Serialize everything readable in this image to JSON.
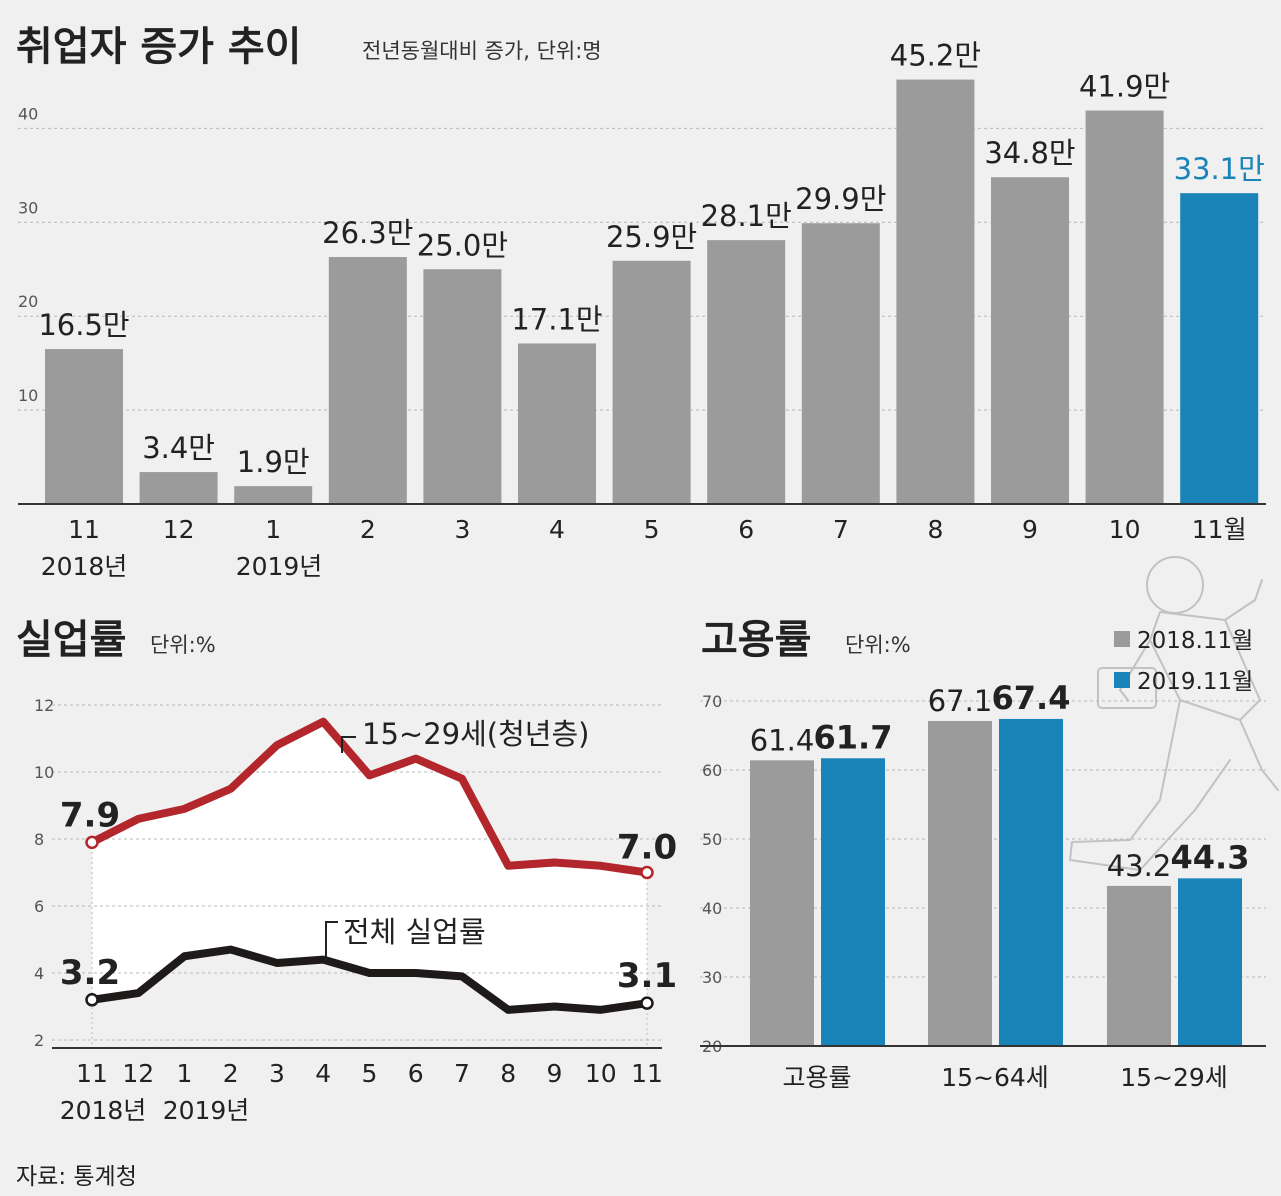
{
  "colors": {
    "background": "#f0f0f0",
    "gray_bar": "#9b9b9b",
    "blue_bar": "#1a84b8",
    "red_line": "#b2262c",
    "black_line": "#1e1a1a",
    "grid": "#b8b8b8",
    "tick_text": "#555555"
  },
  "source": "자료: 통계청",
  "chart_data": [
    {
      "type": "bar",
      "title": "취업자 증가 추이",
      "subtitle": "전년동월대비 증가, 단위:명",
      "categories": [
        "11",
        "12",
        "1",
        "2",
        "3",
        "4",
        "5",
        "6",
        "7",
        "8",
        "9",
        "10",
        "11월"
      ],
      "year_labels": [
        "2018년",
        "2019년"
      ],
      "values": [
        16.5,
        3.4,
        1.9,
        26.3,
        25.0,
        17.1,
        25.9,
        28.1,
        29.9,
        45.2,
        34.8,
        41.9,
        33.1
      ],
      "value_labels": [
        "16.5만",
        "3.4만",
        "1.9만",
        "26.3만",
        "25.0만",
        "17.1만",
        "25.9만",
        "28.1만",
        "29.9만",
        "45.2만",
        "34.8만",
        "41.9만",
        "33.1만"
      ],
      "highlight_index": 12,
      "yticks": [
        10,
        20,
        30,
        40
      ],
      "ylim": [
        0,
        50
      ],
      "grid": true
    },
    {
      "type": "line",
      "title": "실업률",
      "subtitle": "단위:%",
      "categories": [
        "11",
        "12",
        "1",
        "2",
        "3",
        "4",
        "5",
        "6",
        "7",
        "8",
        "9",
        "10",
        "11"
      ],
      "year_labels": [
        "2018년",
        "2019년"
      ],
      "yticks": [
        2,
        4,
        6,
        8,
        10,
        12
      ],
      "ylim": [
        2,
        12
      ],
      "grid": true,
      "series": [
        {
          "name": "15~29세(청년층)",
          "values": [
            7.9,
            8.6,
            8.9,
            9.5,
            10.8,
            11.5,
            9.9,
            10.4,
            9.8,
            7.2,
            7.3,
            7.2,
            7.0
          ],
          "start_label": "7.9",
          "end_label": "7.0"
        },
        {
          "name": "전체 실업률",
          "values": [
            3.2,
            3.4,
            4.5,
            4.7,
            4.3,
            4.4,
            4.0,
            4.0,
            3.9,
            2.9,
            3.0,
            2.9,
            3.1
          ],
          "start_label": "3.2",
          "end_label": "3.1"
        }
      ]
    },
    {
      "type": "bar",
      "title": "고용률",
      "subtitle": "단위:%",
      "categories": [
        "고용률",
        "15~64세",
        "15~29세"
      ],
      "yticks": [
        20,
        30,
        40,
        50,
        60,
        70
      ],
      "ylim": [
        20,
        70
      ],
      "grid": true,
      "legend_position": "top-right",
      "series": [
        {
          "name": "2018.11월",
          "values": [
            61.4,
            67.1,
            43.2
          ],
          "labels": [
            "61.4",
            "67.1",
            "43.2"
          ]
        },
        {
          "name": "2019.11월",
          "values": [
            61.7,
            67.4,
            44.3
          ],
          "labels": [
            "61.7",
            "67.4",
            "44.3"
          ]
        }
      ]
    }
  ]
}
